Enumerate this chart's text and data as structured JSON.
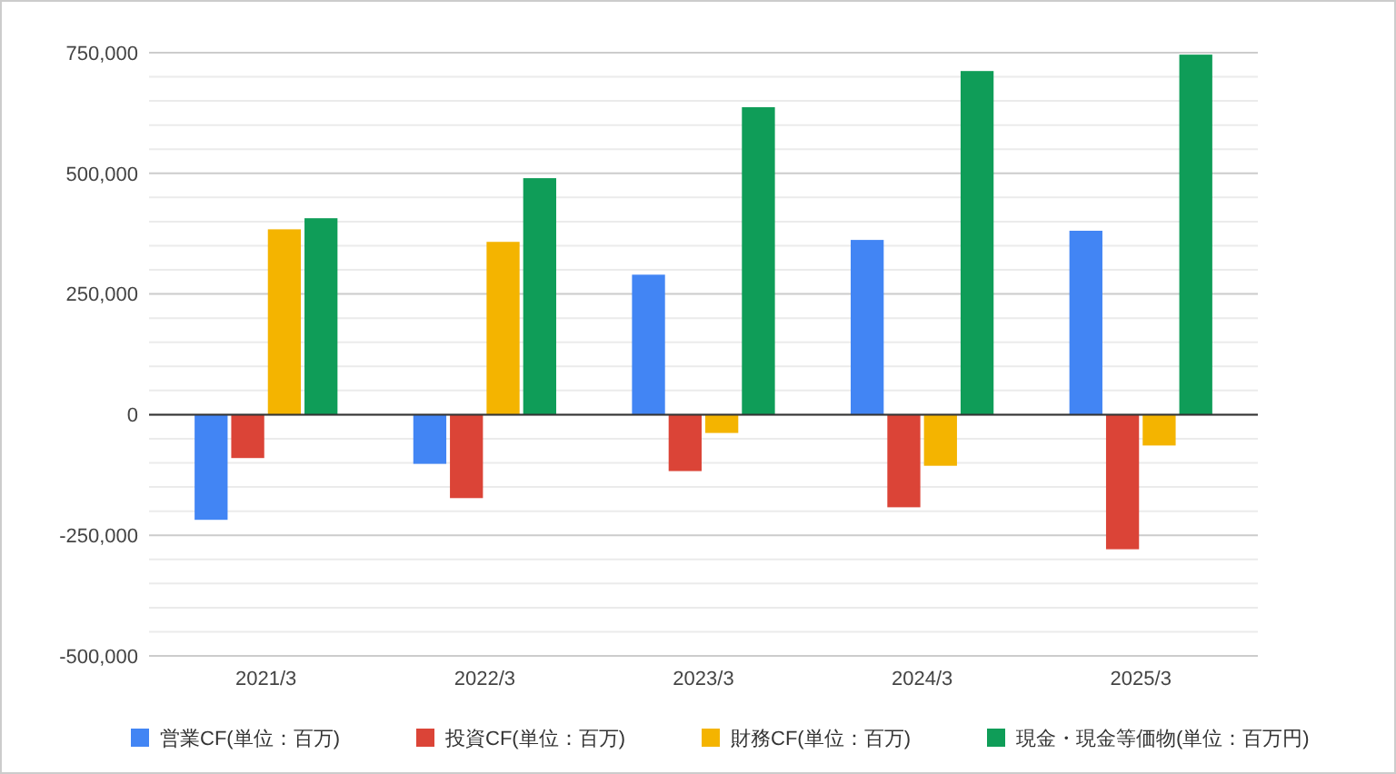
{
  "chart_data": {
    "type": "bar",
    "categories": [
      "2021/3",
      "2022/3",
      "2023/3",
      "2024/3",
      "2025/3"
    ],
    "series": [
      {
        "name": "営業CF(単位：百万)",
        "color": "#4285f4",
        "values": [
          -218000,
          -102000,
          290000,
          362000,
          381000
        ]
      },
      {
        "name": "投資CF(単位：百万)",
        "color": "#db4437",
        "values": [
          -90000,
          -173000,
          -117000,
          -192000,
          -279000
        ]
      },
      {
        "name": "財務CF(単位：百万)",
        "color": "#f4b400",
        "values": [
          384000,
          358000,
          -38000,
          -106000,
          -64000
        ]
      },
      {
        "name": "現金・現金等価物(単位：百万円)",
        "color": "#0f9d58",
        "values": [
          407000,
          490000,
          637000,
          712000,
          746000
        ]
      }
    ],
    "ylim": [
      -500000,
      750000
    ],
    "yticks": [
      {
        "value": -500000,
        "label": "-500,000"
      },
      {
        "value": -450000,
        "label": null
      },
      {
        "value": -400000,
        "label": null
      },
      {
        "value": -350000,
        "label": null
      },
      {
        "value": -300000,
        "label": null
      },
      {
        "value": -250000,
        "label": "-250,000"
      },
      {
        "value": -200000,
        "label": null
      },
      {
        "value": -150000,
        "label": null
      },
      {
        "value": -100000,
        "label": null
      },
      {
        "value": -50000,
        "label": null
      },
      0,
      {
        "value": 50000,
        "label": null
      },
      {
        "value": 100000,
        "label": null
      },
      {
        "value": 150000,
        "label": null
      },
      {
        "value": 200000,
        "label": null
      },
      {
        "value": 250000,
        "label": "250,000"
      },
      {
        "value": 300000,
        "label": null
      },
      {
        "value": 350000,
        "label": null
      },
      {
        "value": 400000,
        "label": null
      },
      {
        "value": 450000,
        "label": null
      },
      {
        "value": 500000,
        "label": "500,000"
      },
      {
        "value": 550000,
        "label": null
      },
      {
        "value": 600000,
        "label": null
      },
      {
        "value": 650000,
        "label": null
      },
      {
        "value": 700000,
        "label": null
      },
      {
        "value": 750000,
        "label": "750,000"
      }
    ],
    "grid": true,
    "legend": "bottom"
  }
}
